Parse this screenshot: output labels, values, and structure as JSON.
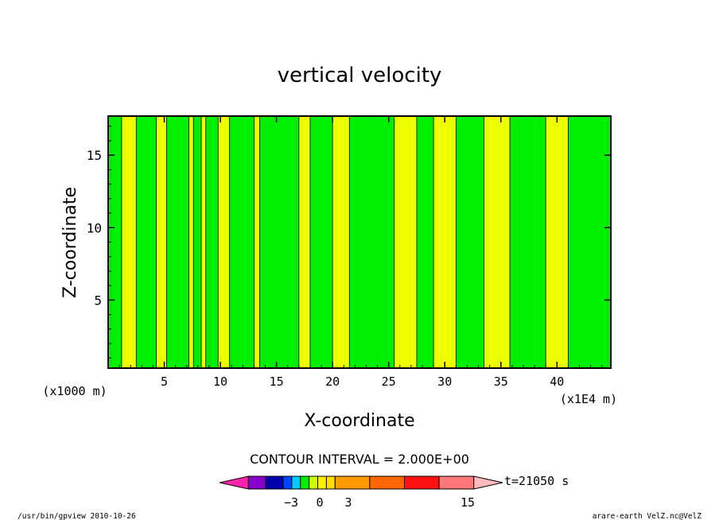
{
  "chart_data": {
    "type": "heatmap",
    "title": "vertical velocity",
    "xlabel": "X-coordinate",
    "ylabel": "Z-coordinate",
    "x_unit_label": "(x1E4 m)",
    "y_unit_label": "(x1000 m)",
    "xlim": [
      0,
      44.8
    ],
    "ylim": [
      0.3,
      17.7
    ],
    "x_ticks": [
      5,
      10,
      15,
      20,
      25,
      30,
      35,
      40
    ],
    "y_ticks": [
      5,
      10,
      15
    ],
    "contour_interval_text": "CONTOUR INTERVAL = 2.000E+00",
    "time_text": "t=21050 s",
    "colorbar": {
      "labels": [
        {
          "value": -3,
          "text": "−3"
        },
        {
          "value": 0,
          "text": "0"
        },
        {
          "value": 3,
          "text": "3"
        },
        {
          "value": 15,
          "text": "15"
        }
      ],
      "segment_colors": [
        "#ff22aa",
        "#8800cc",
        "#0000aa",
        "#0044ff",
        "#00ccff",
        "#00ee00",
        "#ccff00",
        "#ffee00",
        "#ffdd00",
        "#ff9900",
        "#ff6600",
        "#ff1111",
        "#ff7777",
        "#ffbbbb"
      ]
    },
    "field_colors": {
      "negative": "#00ee00",
      "positive": "#eeff00"
    },
    "columns": [
      {
        "x": [
          0,
          1.2
        ],
        "sign": "negative"
      },
      {
        "x": [
          2.5,
          4.3
        ],
        "sign": "negative"
      },
      {
        "x": [
          5.2,
          7.2
        ],
        "sign": "negative"
      },
      {
        "x": [
          7.6,
          8.3
        ],
        "sign": "negative"
      },
      {
        "x": [
          8.7,
          9.8
        ],
        "sign": "negative"
      },
      {
        "x": [
          10.8,
          13
        ],
        "sign": "negative"
      },
      {
        "x": [
          13.5,
          17
        ],
        "sign": "negative"
      },
      {
        "x": [
          18,
          20
        ],
        "sign": "negative"
      },
      {
        "x": [
          21.5,
          25.5
        ],
        "sign": "negative"
      },
      {
        "x": [
          27.5,
          29
        ],
        "sign": "negative"
      },
      {
        "x": [
          31,
          33.5
        ],
        "sign": "negative"
      },
      {
        "x": [
          35.8,
          39
        ],
        "sign": "negative"
      },
      {
        "x": [
          41,
          44.8
        ],
        "sign": "negative"
      }
    ]
  },
  "footer": {
    "left": "/usr/bin/gpview   2010-10-26",
    "right": "arare-earth_VelZ.nc@VelZ"
  }
}
